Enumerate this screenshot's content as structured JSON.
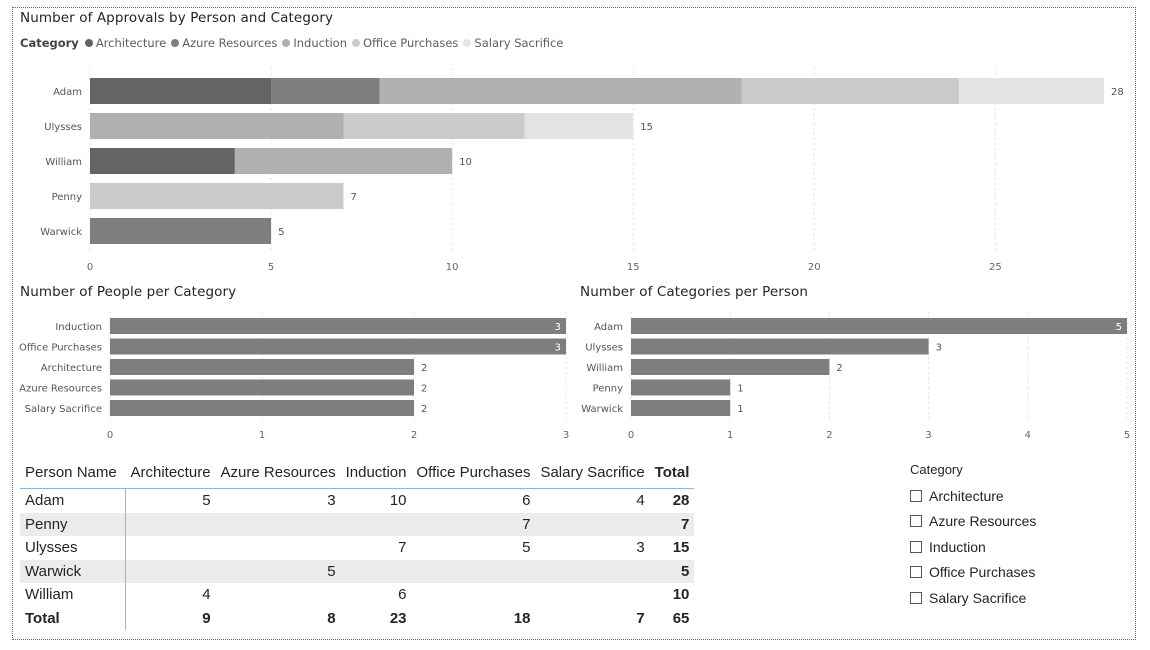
{
  "category_colors": {
    "Architecture": "#646464",
    "Azure Resources": "#7e7e7e",
    "Induction": "#b0b0b0",
    "Office Purchases": "#cbcbcb",
    "Salary Sacrifice": "#e4e4e4"
  },
  "legend": {
    "title": "Category",
    "items": [
      "Architecture",
      "Azure Resources",
      "Induction",
      "Office Purchases",
      "Salary Sacrifice"
    ]
  },
  "chart_data": [
    {
      "type": "bar",
      "orientation": "horizontal",
      "stacked": true,
      "title": "Number of Approvals by Person and Category",
      "categories": [
        "Adam",
        "Ulysses",
        "William",
        "Penny",
        "Warwick"
      ],
      "series": [
        {
          "name": "Architecture",
          "values": [
            5,
            0,
            4,
            0,
            0
          ]
        },
        {
          "name": "Azure Resources",
          "values": [
            3,
            0,
            0,
            0,
            5
          ]
        },
        {
          "name": "Induction",
          "values": [
            10,
            7,
            6,
            0,
            0
          ]
        },
        {
          "name": "Office Purchases",
          "values": [
            6,
            5,
            0,
            7,
            0
          ]
        },
        {
          "name": "Salary Sacrifice",
          "values": [
            4,
            3,
            0,
            0,
            0
          ]
        }
      ],
      "totals": [
        28,
        15,
        10,
        7,
        5
      ],
      "xlim": [
        0,
        28
      ],
      "xticks": [
        0,
        5,
        10,
        15,
        20,
        25
      ],
      "grid": true,
      "legend_position": "top-left"
    },
    {
      "type": "bar",
      "orientation": "horizontal",
      "title": "Number of People per Category",
      "categories": [
        "Induction",
        "Office Purchases",
        "Architecture",
        "Azure Resources",
        "Salary Sacrifice"
      ],
      "values": [
        3,
        3,
        2,
        2,
        2
      ],
      "xlim": [
        0,
        3
      ],
      "xticks": [
        0,
        1,
        2,
        3
      ],
      "grid": true
    },
    {
      "type": "bar",
      "orientation": "horizontal",
      "title": "Number of Categories per Person",
      "categories": [
        "Adam",
        "Ulysses",
        "William",
        "Penny",
        "Warwick"
      ],
      "values": [
        5,
        3,
        2,
        1,
        1
      ],
      "xlim": [
        0,
        5
      ],
      "xticks": [
        0,
        1,
        2,
        3,
        4,
        5
      ],
      "grid": true
    }
  ],
  "matrix": {
    "headers": [
      "Person Name",
      "Architecture",
      "Azure Resources",
      "Induction",
      "Office Purchases",
      "Salary Sacrifice",
      "Total"
    ],
    "rows": [
      {
        "name": "Adam",
        "cells": [
          "5",
          "3",
          "10",
          "6",
          "4"
        ],
        "total": "28"
      },
      {
        "name": "Penny",
        "cells": [
          "",
          "",
          "",
          "7",
          ""
        ],
        "total": "7"
      },
      {
        "name": "Ulysses",
        "cells": [
          "",
          "",
          "7",
          "5",
          "3"
        ],
        "total": "15"
      },
      {
        "name": "Warwick",
        "cells": [
          "",
          "5",
          "",
          "",
          ""
        ],
        "total": "5"
      },
      {
        "name": "William",
        "cells": [
          "4",
          "",
          "6",
          "",
          ""
        ],
        "total": "10"
      }
    ],
    "total_row": {
      "name": "Total",
      "cells": [
        "9",
        "8",
        "23",
        "18",
        "7"
      ],
      "total": "65"
    }
  },
  "slicer": {
    "title": "Category",
    "items": [
      "Architecture",
      "Azure Resources",
      "Induction",
      "Office Purchases",
      "Salary Sacrifice"
    ]
  }
}
